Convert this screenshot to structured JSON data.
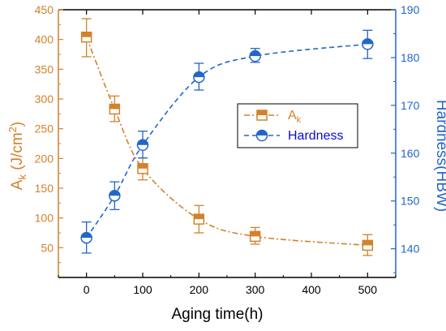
{
  "chart_data": {
    "type": "line",
    "title": "",
    "xlabel": "Aging time(h)",
    "ylabel_left": {
      "main": "A",
      "sub": "k",
      "rest": " (J/cm",
      "sup": "2",
      "close": ")"
    },
    "ylabel_right": "Hardness(HBW)",
    "xlim": [
      -50,
      550
    ],
    "ylim_left": [
      0,
      450
    ],
    "ylim_right": [
      134,
      190
    ],
    "x_ticks": [
      0,
      100,
      200,
      300,
      400,
      500
    ],
    "y_left_ticks": [
      50,
      100,
      150,
      200,
      250,
      300,
      350,
      400,
      450
    ],
    "y_right_ticks": [
      140,
      150,
      160,
      170,
      180,
      190
    ],
    "grid": false,
    "legend_position": "center-right",
    "series": [
      {
        "name": "Ak",
        "legend_main": "A",
        "legend_sub": "k",
        "axis": "left",
        "color": "#d4812c",
        "marker": "half-filled-square",
        "line_style": "dash-dot",
        "x": [
          0,
          50,
          100,
          200,
          300,
          500
        ],
        "y": [
          404,
          283,
          183,
          98,
          69,
          54
        ],
        "err_low": [
          371,
          262,
          164,
          75,
          56,
          37
        ],
        "err_high": [
          435,
          305,
          201,
          121,
          84,
          72
        ]
      },
      {
        "name": "Hardness",
        "legend_main": "Hardness",
        "legend_sub": "",
        "axis": "right",
        "color": "#2366c7",
        "marker": "half-filled-circle",
        "line_style": "dashed",
        "x": [
          0,
          50,
          100,
          200,
          300,
          500
        ],
        "y": [
          142.3,
          151.1,
          161.7,
          175.9,
          180.3,
          182.8
        ],
        "err_low": [
          139.1,
          148.2,
          159.0,
          173.2,
          179.0,
          179.8
        ],
        "err_high": [
          145.6,
          154.0,
          164.6,
          178.8,
          181.9,
          185.7
        ]
      }
    ]
  }
}
